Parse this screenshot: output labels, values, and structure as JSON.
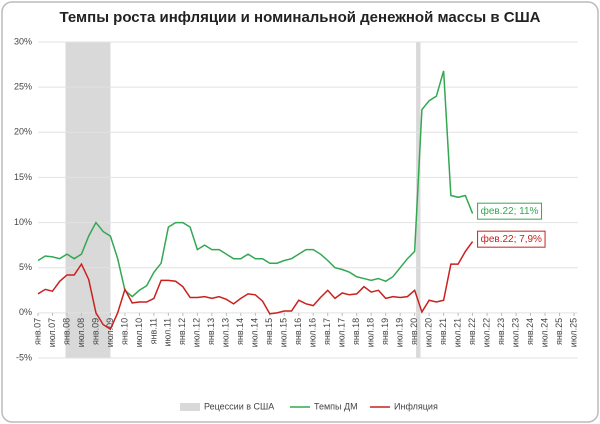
{
  "chart_data": {
    "type": "line",
    "title": "Темпы роста инфляции и номинальной денежной массы в США",
    "categories": [
      "янв.07",
      null,
      "июл.07",
      null,
      "янв.08",
      null,
      "июл.08",
      null,
      "янв.09",
      null,
      "июл.09",
      null,
      "янв.10",
      null,
      "июл.10",
      null,
      "янв.11",
      null,
      "июл.11",
      null,
      "янв.12",
      null,
      "июл.12",
      null,
      "янв.13",
      null,
      "июл.13",
      null,
      "янв.14",
      null,
      "июл.14",
      null,
      "янв.15",
      null,
      "июл.15",
      null,
      "янв.16",
      null,
      "июл.16",
      null,
      "янв.17",
      null,
      "июл.17",
      null,
      "янв.18",
      null,
      "июл.18",
      null,
      "янв.19",
      null,
      "июл.19",
      null,
      "янв.20",
      null,
      "июл.20",
      null,
      "янв.21",
      null,
      "июл.21",
      null,
      "янв.22",
      null,
      "июл.22",
      null,
      "янв.23",
      null,
      "июл.23",
      null,
      "янв.24",
      null,
      "июл.24",
      null,
      "янв.25",
      null,
      "июл.25"
    ],
    "series": [
      {
        "name": "Темпы ДМ",
        "color": "#33a852",
        "values": [
          5.8,
          6.3,
          6.2,
          6.0,
          6.5,
          6.0,
          6.5,
          8.5,
          10.0,
          9.0,
          8.5,
          6.0,
          2.5,
          1.8,
          2.5,
          3.0,
          4.5,
          5.5,
          9.5,
          10.0,
          10.0,
          9.5,
          7.0,
          7.5,
          7.0,
          7.0,
          6.5,
          6.0,
          6.0,
          6.5,
          6.0,
          6.0,
          5.5,
          5.5,
          5.8,
          6.0,
          6.5,
          7.0,
          7.0,
          6.5,
          5.8,
          5.0,
          4.8,
          4.5,
          4.0,
          3.8,
          3.6,
          3.8,
          3.5,
          4.0,
          5.0,
          6.0,
          6.8,
          22.5,
          23.5,
          24.0,
          26.8,
          13.0,
          12.8,
          13.0,
          11.0,
          null,
          null,
          null,
          null,
          null,
          null,
          null,
          null,
          null,
          null,
          null,
          null,
          null,
          null
        ],
        "value_labels": [
          null,
          null,
          null,
          null,
          null,
          null,
          null,
          null,
          null,
          null,
          null,
          null,
          null,
          null,
          null,
          null,
          null,
          null,
          null,
          null,
          null,
          null,
          null,
          null,
          null,
          null,
          null,
          null,
          null,
          null,
          null,
          null,
          null,
          null,
          null,
          null,
          null,
          null,
          null,
          null,
          null,
          null,
          null,
          null,
          null,
          null,
          null,
          null,
          null,
          null,
          null,
          null,
          null,
          null,
          null,
          null,
          null,
          null,
          null,
          null,
          "фев.22; 11%",
          null,
          null,
          null,
          null,
          null,
          null,
          null,
          null,
          null,
          null,
          null,
          null,
          null,
          null
        ]
      },
      {
        "name": "Инфляция",
        "color": "#c9211e",
        "values": [
          2.1,
          2.6,
          2.4,
          3.5,
          4.2,
          4.2,
          5.4,
          3.7,
          0.0,
          -1.3,
          -1.8,
          0.0,
          2.6,
          1.1,
          1.2,
          1.2,
          1.6,
          3.6,
          3.6,
          3.5,
          2.9,
          1.7,
          1.7,
          1.8,
          1.6,
          1.8,
          1.5,
          1.0,
          1.6,
          2.1,
          2.0,
          1.3,
          -0.1,
          0.0,
          0.2,
          0.2,
          1.4,
          1.0,
          0.8,
          1.7,
          2.5,
          1.6,
          2.2,
          2.0,
          2.1,
          2.9,
          2.3,
          2.5,
          1.6,
          1.8,
          1.7,
          1.8,
          2.5,
          0.1,
          1.4,
          1.2,
          1.4,
          5.4,
          5.4,
          6.8,
          7.9,
          null,
          null,
          null,
          null,
          null,
          null,
          null,
          null,
          null,
          null,
          null,
          null,
          null,
          null
        ],
        "value_labels": [
          null,
          null,
          null,
          null,
          null,
          null,
          null,
          null,
          null,
          null,
          null,
          null,
          null,
          null,
          null,
          null,
          null,
          null,
          null,
          null,
          null,
          null,
          null,
          null,
          null,
          null,
          null,
          null,
          null,
          null,
          null,
          null,
          null,
          null,
          null,
          null,
          null,
          null,
          null,
          null,
          null,
          null,
          null,
          null,
          null,
          null,
          null,
          null,
          null,
          null,
          null,
          null,
          null,
          null,
          null,
          null,
          null,
          null,
          null,
          null,
          "фев.22; 7,9%",
          null,
          null,
          null,
          null,
          null,
          null,
          null,
          null,
          null,
          null,
          null,
          null,
          null,
          null
        ]
      }
    ],
    "recessions": {
      "name": "Рецессии в США",
      "color": "#d9d9d9",
      "ranges": [
        [
          3.8,
          10
        ],
        [
          52.2,
          52.8
        ]
      ]
    },
    "ylim": [
      -5,
      30
    ],
    "yticks": [
      {
        "value": -5,
        "label": "-5%"
      },
      {
        "value": 0,
        "label": "0%"
      },
      {
        "value": 5,
        "label": "5%"
      },
      {
        "value": 10,
        "label": "10%"
      },
      {
        "value": 15,
        "label": "15%"
      },
      {
        "value": 20,
        "label": "20%"
      },
      {
        "value": 25,
        "label": "25%"
      },
      {
        "value": 30,
        "label": "30%"
      }
    ],
    "grid": true
  }
}
